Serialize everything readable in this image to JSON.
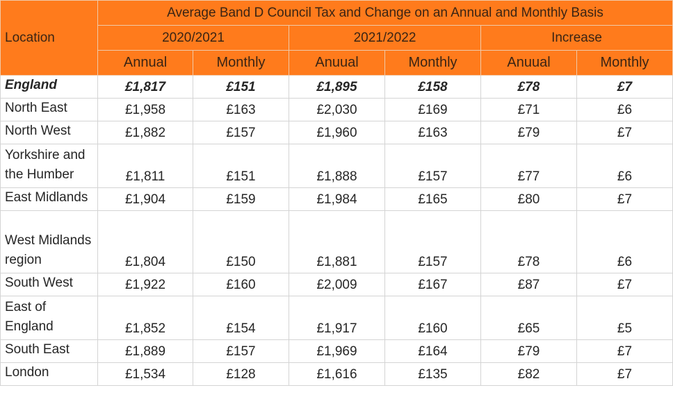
{
  "title": "Average Band D Council Tax and Change on an Annual and Monthly Basis",
  "accent_color": "#ff7b1c",
  "header": {
    "location": "Location",
    "groups": [
      "2020/2021",
      "2021/2022",
      "Increase"
    ],
    "subheaders": [
      "Annual",
      "Monthly",
      "Anuual",
      "Monthly",
      "Anuual",
      "Monthly"
    ]
  },
  "rows": [
    {
      "location": "England",
      "values": [
        "£1,817",
        "£151",
        "£1,895",
        "£158",
        "£78",
        "£7"
      ]
    },
    {
      "location": "North East",
      "values": [
        "£1,958",
        "£163",
        "£2,030",
        "£169",
        "£71",
        "£6"
      ]
    },
    {
      "location": "North West",
      "values": [
        "£1,882",
        "£157",
        "£1,960",
        "£163",
        "£79",
        "£7"
      ]
    },
    {
      "location": "Yorkshire and the Humber",
      "values": [
        "£1,811",
        "£151",
        "£1,888",
        "£157",
        "£77",
        "£6"
      ]
    },
    {
      "location": "East Midlands",
      "values": [
        "£1,904",
        "£159",
        "£1,984",
        "£165",
        "£80",
        "£7"
      ]
    },
    {
      "location": "West Midlands region",
      "values": [
        "£1,804",
        "£150",
        "£1,881",
        "£157",
        "£78",
        "£6"
      ]
    },
    {
      "location": "South West",
      "values": [
        "£1,922",
        "£160",
        "£2,009",
        "£167",
        "£87",
        "£7"
      ]
    },
    {
      "location": "East of England",
      "values": [
        "£1,852",
        "£154",
        "£1,917",
        "£160",
        "£65",
        "£5"
      ]
    },
    {
      "location": "South East",
      "values": [
        "£1,889",
        "£157",
        "£1,969",
        "£164",
        "£79",
        "£7"
      ]
    },
    {
      "location": "London",
      "values": [
        "£1,534",
        "£128",
        "£1,616",
        "£135",
        "£82",
        "£7"
      ]
    }
  ]
}
